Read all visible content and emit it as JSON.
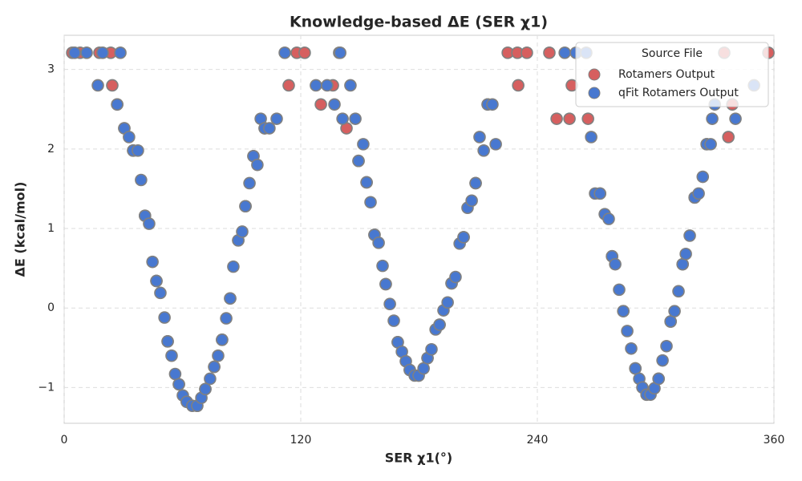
{
  "chart_data": {
    "type": "scatter",
    "title": "Knowledge-based ΔE (SER χ1)",
    "x_label": "SER χ1(°)",
    "y_label": "ΔE (kcal/mol)",
    "xlim": [
      0,
      360
    ],
    "xticks": [
      0,
      120,
      240,
      360
    ],
    "ylim": [
      -1.45,
      3.43
    ],
    "yticks": [
      {
        "value": -1,
        "label": "−1"
      },
      0,
      1,
      2,
      3
    ],
    "grid": true,
    "legend_title": "Source File",
    "legend_position": "upper right",
    "series": [
      {
        "name": "Rotamers Output",
        "color": "#d65f5f",
        "x": [
          4.1,
          8.1,
          17.9,
          23.6,
          24.4,
          26.9,
          30.5,
          35,
          41,
          46.8,
          52.5,
          58.2,
          62.2,
          67.5,
          71.6,
          76.1,
          80.1,
          84.2,
          88.3,
          92,
          96,
          101.7,
          113.9,
          118,
          122,
          130.2,
          136.3,
          139.5,
          143.2,
          149.3,
          153.4,
          157.4,
          163.1,
          169.2,
          175.3,
          179.8,
          184.3,
          190.4,
          196.5,
          202.6,
          208.7,
          214.8,
          225,
          229.9,
          234.7,
          230.3,
          246.1,
          249.8,
          256.3,
          257.5,
          265.7,
          271.8,
          277.9,
          283.6,
          289.7,
          295.4,
          301.5,
          307.6,
          313.7,
          319.8,
          325.9,
          334.8,
          336.9,
          338.9,
          357.2
        ],
        "values": [
          3.21,
          3.21,
          3.21,
          3.21,
          2.8,
          2.56,
          2.26,
          1.98,
          1.16,
          0.34,
          -0.42,
          -0.96,
          -1.18,
          -1.23,
          -1.02,
          -0.74,
          -0.4,
          0.12,
          0.85,
          1.28,
          1.91,
          2.26,
          2.8,
          3.21,
          3.21,
          2.56,
          2.8,
          3.21,
          2.26,
          1.85,
          1.58,
          0.92,
          0.3,
          -0.43,
          -0.78,
          -0.85,
          -0.63,
          -0.21,
          0.31,
          0.89,
          1.57,
          2.56,
          3.21,
          3.21,
          3.21,
          2.8,
          3.21,
          2.38,
          2.38,
          2.8,
          2.38,
          1.44,
          0.65,
          -0.04,
          -0.76,
          -1.09,
          -0.89,
          -0.17,
          0.55,
          1.39,
          2.06,
          3.21,
          2.15,
          2.56,
          3.21
        ]
      },
      {
        "name": "qFit Rotamers Output",
        "color": "#4878d0",
        "x": [
          5.3,
          11.4,
          19.5,
          28.5,
          17.1,
          26.9,
          30.5,
          32.9,
          35,
          37.4,
          39,
          41,
          43.1,
          44.8,
          46.8,
          48.8,
          50.9,
          52.5,
          54.5,
          56.3,
          58.2,
          60.2,
          62.2,
          65,
          67.5,
          69.6,
          71.6,
          74,
          76.1,
          78.1,
          80.1,
          82.2,
          84.2,
          85.8,
          88.3,
          90.3,
          91.9,
          94,
          96,
          98,
          99.7,
          101.7,
          104.1,
          107.8,
          111.9,
          127.7,
          133.4,
          137.1,
          140,
          141.2,
          145.2,
          147.7,
          149.3,
          151.7,
          153.4,
          155.4,
          157.4,
          159.5,
          161.5,
          163.1,
          165.2,
          167.2,
          169.2,
          171.3,
          173.3,
          175.3,
          177.8,
          179.8,
          182.3,
          184.3,
          186.3,
          188.4,
          190.4,
          192.4,
          194.5,
          196.5,
          198.5,
          200.6,
          202.6,
          204.6,
          206.7,
          208.7,
          210.7,
          212.8,
          214.8,
          217.2,
          218.9,
          253.9,
          259.6,
          264.8,
          267.3,
          269.3,
          271.8,
          274.2,
          276.2,
          277.9,
          279.5,
          281.5,
          283.6,
          285.6,
          287.6,
          289.7,
          291.7,
          293.3,
          295.4,
          297.4,
          299.4,
          301.5,
          303.5,
          305.5,
          307.6,
          309.6,
          311.6,
          313.7,
          315.3,
          317.3,
          319.8,
          321.8,
          323.9,
          325.9,
          327.9,
          328.7,
          330,
          340.5,
          349.9
        ],
        "values": [
          3.21,
          3.21,
          3.21,
          3.21,
          2.8,
          2.56,
          2.26,
          2.15,
          1.98,
          1.98,
          1.61,
          1.16,
          1.06,
          0.58,
          0.34,
          0.19,
          -0.12,
          -0.42,
          -0.6,
          -0.83,
          -0.96,
          -1.1,
          -1.18,
          -1.23,
          -1.23,
          -1.13,
          -1.02,
          -0.89,
          -0.74,
          -0.6,
          -0.4,
          -0.13,
          0.12,
          0.52,
          0.85,
          0.96,
          1.28,
          1.57,
          1.91,
          1.8,
          2.38,
          2.26,
          2.26,
          2.38,
          3.21,
          2.8,
          2.8,
          2.56,
          3.21,
          2.38,
          2.8,
          2.38,
          1.85,
          2.06,
          1.58,
          1.33,
          0.92,
          0.82,
          0.53,
          0.3,
          0.05,
          -0.16,
          -0.43,
          -0.55,
          -0.67,
          -0.78,
          -0.85,
          -0.85,
          -0.76,
          -0.63,
          -0.52,
          -0.27,
          -0.21,
          -0.03,
          0.07,
          0.31,
          0.39,
          0.81,
          0.89,
          1.26,
          1.35,
          1.57,
          2.15,
          1.98,
          2.56,
          2.56,
          2.06,
          3.21,
          3.21,
          3.21,
          2.15,
          1.44,
          1.44,
          1.18,
          1.12,
          0.65,
          0.55,
          0.23,
          -0.04,
          -0.29,
          -0.51,
          -0.76,
          -0.89,
          -1.0,
          -1.09,
          -1.09,
          -1.01,
          -0.89,
          -0.66,
          -0.48,
          -0.17,
          -0.04,
          0.21,
          0.55,
          0.68,
          0.91,
          1.39,
          1.44,
          1.65,
          2.06,
          2.06,
          2.38,
          2.56,
          2.38,
          2.8
        ]
      }
    ]
  }
}
